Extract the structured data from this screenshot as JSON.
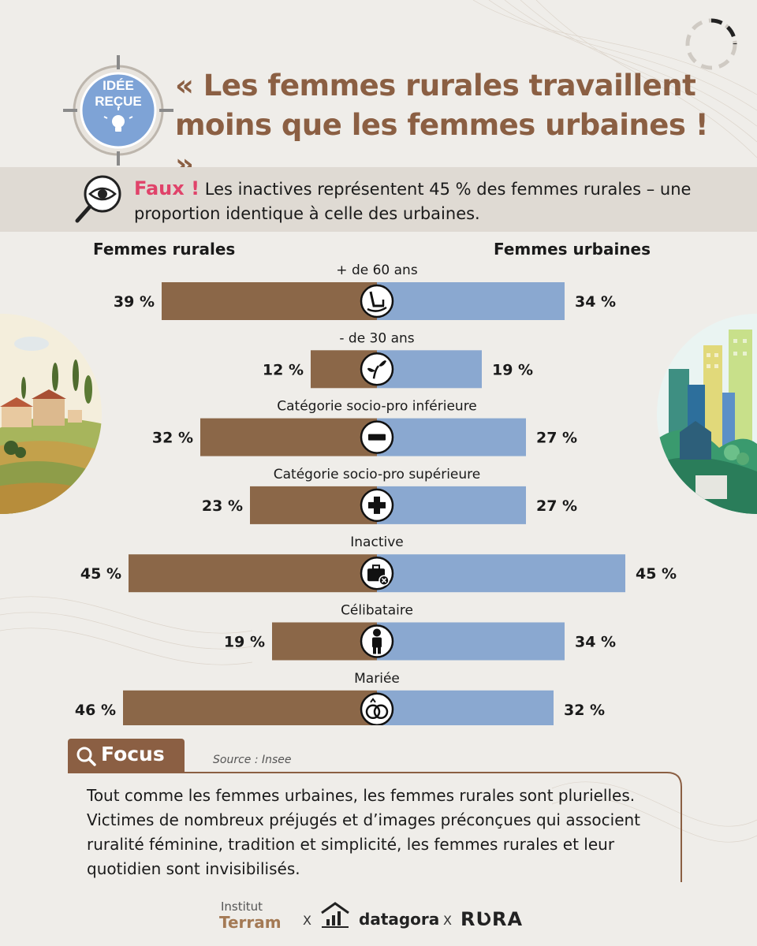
{
  "badge": {
    "line1": "IDÉE",
    "line2": "REÇUE"
  },
  "title": "« Les femmes rurales travaillent moins que les femmes urbaines ! »",
  "faux": {
    "highlight": "Faux !",
    "text": "Les inactives représentent 45 % des femmes rurales – une proportion identique à celle des urbaines."
  },
  "headers": {
    "left": "Femmes rurales",
    "right": "Femmes urbaines"
  },
  "colors": {
    "rural": "#8b6748",
    "urban": "#8aa8d0",
    "accent": "#e0436a",
    "brand": "#8b5f43"
  },
  "chart_data": {
    "type": "bar",
    "orientation": "diverging-horizontal",
    "categories": [
      "+ de 60 ans",
      "- de 30 ans",
      "Catégorie socio-pro inférieure",
      "Catégorie socio-pro supérieure",
      "Inactive",
      "Célibataire",
      "Mariée"
    ],
    "icons": [
      "rocking-chair-icon",
      "sprout-icon",
      "minus-icon",
      "plus-icon",
      "briefcase-x-icon",
      "person-icon",
      "rings-icon"
    ],
    "series": [
      {
        "name": "Femmes rurales",
        "values": [
          39,
          12,
          32,
          23,
          45,
          19,
          46
        ],
        "labels": [
          "39 %",
          "12 %",
          "32 %",
          "23 %",
          "45 %",
          "19 %",
          "46 %"
        ]
      },
      {
        "name": "Femmes urbaines",
        "values": [
          34,
          19,
          27,
          27,
          45,
          34,
          32
        ],
        "labels": [
          "34 %",
          "19 %",
          "27 %",
          "27 %",
          "45 %",
          "34 %",
          "32 %"
        ]
      }
    ],
    "unit": "%"
  },
  "focus": {
    "label": "Focus",
    "source": "Source : Insee",
    "text": "Tout comme les femmes urbaines, les femmes rurales sont plurielles. Victimes de nombreux préjugés et d’images préconçues qui associent ruralité féminine, tradition et simplicité, les femmes rurales et leur quotidien sont invisibilisés."
  },
  "footer": {
    "institut": "Institut",
    "terram": "Terram",
    "x": "X",
    "datagora": "datagora",
    "rura": "RƲRA"
  }
}
